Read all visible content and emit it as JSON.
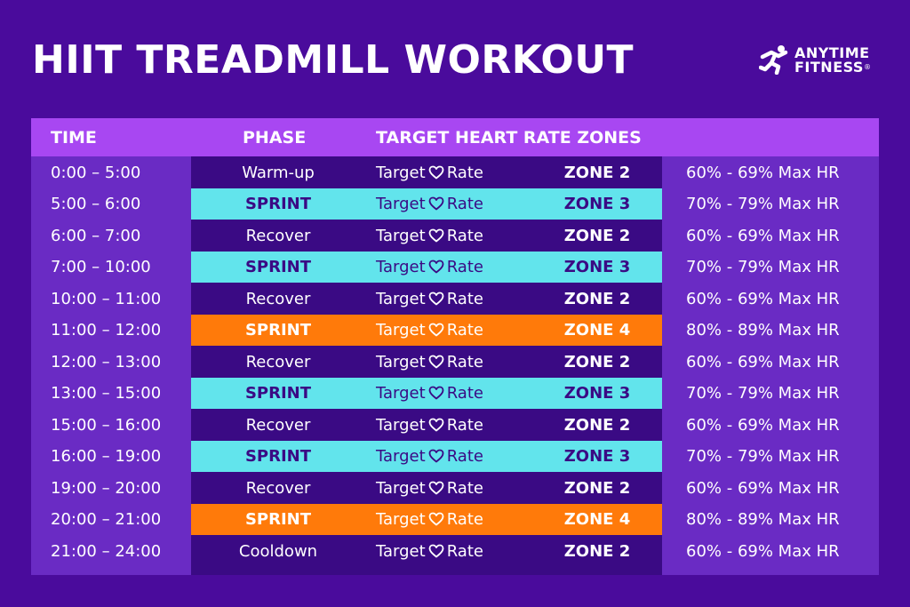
{
  "title": "HIIT TREADMILL WORKOUT",
  "logo": {
    "line1": "ANYTIME",
    "line2": "FITNESS",
    "registered": "®"
  },
  "table": {
    "headers": {
      "time": "TIME",
      "phase": "PHASE",
      "zones": "TARGET HEART RATE ZONES"
    },
    "target_prefix": "Target",
    "target_suffix": "Rate",
    "colors": {
      "cyan": "#62e4ec",
      "orange": "#ff7a0a",
      "dark": "#3a0a84",
      "light": "#6a2bc4"
    },
    "rows": [
      {
        "time": "0:00 – 5:00",
        "phase": "Warm-up",
        "zone": "ZONE 2",
        "max": "60% - 69% Max HR",
        "style": "plain"
      },
      {
        "time": "5:00 – 6:00",
        "phase": "SPRINT",
        "zone": "ZONE 3",
        "max": "70% - 79% Max HR",
        "style": "cyan"
      },
      {
        "time": "6:00 – 7:00",
        "phase": "Recover",
        "zone": "ZONE 2",
        "max": "60% - 69% Max HR",
        "style": "plain"
      },
      {
        "time": "7:00 – 10:00",
        "phase": "SPRINT",
        "zone": "ZONE 3",
        "max": "70% - 79% Max HR",
        "style": "cyan"
      },
      {
        "time": "10:00 – 11:00",
        "phase": "Recover",
        "zone": "ZONE 2",
        "max": "60% - 69% Max HR",
        "style": "plain"
      },
      {
        "time": "11:00 – 12:00",
        "phase": "SPRINT",
        "zone": "ZONE 4",
        "max": "80% - 89% Max HR",
        "style": "orange"
      },
      {
        "time": "12:00 – 13:00",
        "phase": "Recover",
        "zone": "ZONE 2",
        "max": "60% - 69% Max HR",
        "style": "plain"
      },
      {
        "time": "13:00 – 15:00",
        "phase": "SPRINT",
        "zone": "ZONE 3",
        "max": "70% - 79% Max HR",
        "style": "cyan"
      },
      {
        "time": "15:00 – 16:00",
        "phase": "Recover",
        "zone": "ZONE 2",
        "max": "60% - 69% Max HR",
        "style": "plain"
      },
      {
        "time": "16:00 – 19:00",
        "phase": "SPRINT",
        "zone": "ZONE 3",
        "max": "70% - 79% Max HR",
        "style": "cyan"
      },
      {
        "time": "19:00 – 20:00",
        "phase": "Recover",
        "zone": "ZONE 2",
        "max": "60% - 69% Max HR",
        "style": "plain"
      },
      {
        "time": "20:00 – 21:00",
        "phase": "SPRINT",
        "zone": "ZONE 4",
        "max": "80% - 89% Max HR",
        "style": "orange"
      },
      {
        "time": "21:00 – 24:00",
        "phase": "Cooldown",
        "zone": "ZONE 2",
        "max": "60% - 69% Max HR",
        "style": "plain"
      }
    ]
  }
}
